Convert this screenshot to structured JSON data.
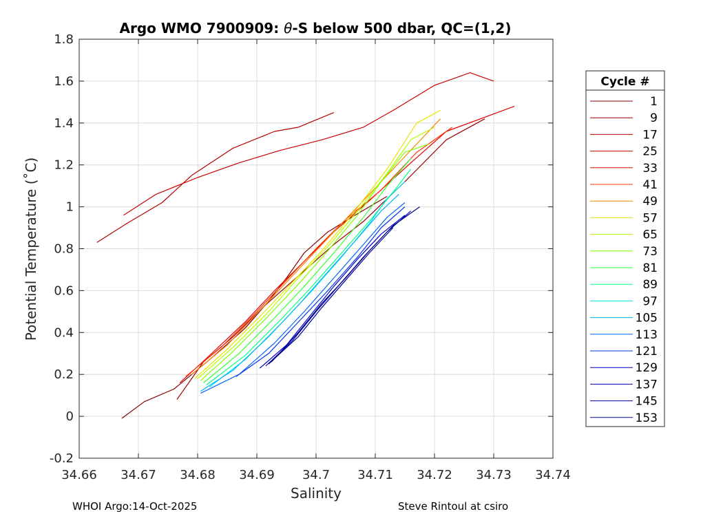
{
  "chart_data": {
    "type": "line",
    "title_prefix": "Argo WMO 7900909: ",
    "title_theta": "θ",
    "title_suffix": "-S below 500 dbar,  QC=(1,2)",
    "xlabel": "Salinity",
    "ylabel": "Potential Temperature (˚C)",
    "xlim": [
      34.66,
      34.74
    ],
    "ylim": [
      -0.2,
      1.8
    ],
    "xticks": [
      "34.66",
      "34.67",
      "34.68",
      "34.69",
      "34.7",
      "34.71",
      "34.72",
      "34.73",
      "34.74"
    ],
    "yticks": [
      "-0.2",
      "0",
      "0.2",
      "0.4",
      "0.6",
      "0.8",
      "1",
      "1.2",
      "1.4",
      "1.6",
      "1.8"
    ],
    "grid": true,
    "legend_title": "Cycle #",
    "legend_placement": "right outside",
    "series": [
      {
        "name": "1",
        "color": "#800000",
        "points": [
          [
            34.6672,
            -0.01
          ],
          [
            34.671,
            0.07
          ],
          [
            34.676,
            0.13
          ],
          [
            34.682,
            0.27
          ],
          [
            34.688,
            0.42
          ],
          [
            34.692,
            0.55
          ],
          [
            34.695,
            0.66
          ],
          [
            34.698,
            0.78
          ],
          [
            34.702,
            0.88
          ],
          [
            34.706,
            0.95
          ],
          [
            34.712,
            1.05
          ]
        ]
      },
      {
        "name": "9",
        "color": "#990000",
        "points": [
          [
            34.6765,
            0.08
          ],
          [
            34.681,
            0.26
          ],
          [
            34.686,
            0.38
          ],
          [
            34.691,
            0.52
          ],
          [
            34.695,
            0.62
          ],
          [
            34.699,
            0.72
          ],
          [
            34.703,
            0.82
          ],
          [
            34.708,
            0.93
          ],
          [
            34.715,
            1.12
          ],
          [
            34.722,
            1.32
          ],
          [
            34.7285,
            1.42
          ]
        ]
      },
      {
        "name": "17",
        "color": "#b30000",
        "points": [
          [
            34.663,
            0.83
          ],
          [
            34.668,
            0.92
          ],
          [
            34.674,
            1.02
          ],
          [
            34.679,
            1.15
          ],
          [
            34.686,
            1.28
          ],
          [
            34.693,
            1.36
          ],
          [
            34.697,
            1.38
          ],
          [
            34.703,
            1.45
          ]
        ]
      },
      {
        "name": "25",
        "color": "#cc0000",
        "points": [
          [
            34.6675,
            0.96
          ],
          [
            34.673,
            1.06
          ],
          [
            34.68,
            1.14
          ],
          [
            34.687,
            1.21
          ],
          [
            34.694,
            1.27
          ],
          [
            34.701,
            1.32
          ],
          [
            34.708,
            1.38
          ],
          [
            34.713,
            1.46
          ],
          [
            34.72,
            1.58
          ],
          [
            34.726,
            1.64
          ],
          [
            34.73,
            1.6
          ]
        ]
      },
      {
        "name": "33",
        "color": "#e60000",
        "points": [
          [
            34.677,
            0.16
          ],
          [
            34.682,
            0.29
          ],
          [
            34.688,
            0.45
          ],
          [
            34.693,
            0.6
          ],
          [
            34.698,
            0.74
          ],
          [
            34.703,
            0.88
          ],
          [
            34.709,
            1.03
          ],
          [
            34.716,
            1.21
          ],
          [
            34.722,
            1.36
          ],
          [
            34.7335,
            1.48
          ]
        ]
      },
      {
        "name": "41",
        "color": "#ff3300",
        "points": [
          [
            34.678,
            0.19
          ],
          [
            34.684,
            0.33
          ],
          [
            34.69,
            0.5
          ],
          [
            34.695,
            0.65
          ],
          [
            34.7,
            0.8
          ],
          [
            34.705,
            0.94
          ],
          [
            34.711,
            1.08
          ],
          [
            34.717,
            1.26
          ],
          [
            34.723,
            1.38
          ]
        ]
      },
      {
        "name": "49",
        "color": "#ff8000",
        "points": [
          [
            34.679,
            0.2
          ],
          [
            34.685,
            0.34
          ],
          [
            34.691,
            0.52
          ],
          [
            34.696,
            0.67
          ],
          [
            34.701,
            0.82
          ],
          [
            34.706,
            0.97
          ],
          [
            34.712,
            1.15
          ],
          [
            34.718,
            1.33
          ],
          [
            34.721,
            1.42
          ]
        ]
      },
      {
        "name": "57",
        "color": "#e6e600",
        "points": [
          [
            34.6795,
            0.18
          ],
          [
            34.685,
            0.32
          ],
          [
            34.691,
            0.49
          ],
          [
            34.696,
            0.64
          ],
          [
            34.701,
            0.79
          ],
          [
            34.706,
            0.96
          ],
          [
            34.712,
            1.18
          ],
          [
            34.717,
            1.4
          ],
          [
            34.721,
            1.46
          ]
        ]
      },
      {
        "name": "65",
        "color": "#b3ff00",
        "points": [
          [
            34.68,
            0.18
          ],
          [
            34.686,
            0.33
          ],
          [
            34.692,
            0.5
          ],
          [
            34.697,
            0.66
          ],
          [
            34.702,
            0.81
          ],
          [
            34.707,
            0.98
          ],
          [
            34.712,
            1.16
          ],
          [
            34.716,
            1.32
          ],
          [
            34.72,
            1.38
          ]
        ]
      },
      {
        "name": "73",
        "color": "#80ff00",
        "points": [
          [
            34.6805,
            0.17
          ],
          [
            34.686,
            0.31
          ],
          [
            34.692,
            0.48
          ],
          [
            34.697,
            0.63
          ],
          [
            34.702,
            0.79
          ],
          [
            34.707,
            0.96
          ],
          [
            34.711,
            1.12
          ],
          [
            34.715,
            1.26
          ],
          [
            34.719,
            1.3
          ]
        ]
      },
      {
        "name": "81",
        "color": "#33ff33",
        "points": [
          [
            34.681,
            0.16
          ],
          [
            34.687,
            0.3
          ],
          [
            34.693,
            0.47
          ],
          [
            34.698,
            0.62
          ],
          [
            34.703,
            0.78
          ],
          [
            34.708,
            0.95
          ],
          [
            34.712,
            1.1
          ],
          [
            34.716,
            1.23
          ]
        ]
      },
      {
        "name": "89",
        "color": "#00ff80",
        "points": [
          [
            34.6815,
            0.15
          ],
          [
            34.688,
            0.29
          ],
          [
            34.694,
            0.46
          ],
          [
            34.699,
            0.61
          ],
          [
            34.704,
            0.77
          ],
          [
            34.709,
            0.93
          ],
          [
            34.713,
            1.07
          ],
          [
            34.716,
            1.18
          ]
        ]
      },
      {
        "name": "97",
        "color": "#00e6e6",
        "points": [
          [
            34.682,
            0.14
          ],
          [
            34.688,
            0.27
          ],
          [
            34.694,
            0.44
          ],
          [
            34.699,
            0.59
          ],
          [
            34.704,
            0.75
          ],
          [
            34.709,
            0.92
          ],
          [
            34.712,
            1.04
          ],
          [
            34.715,
            1.12
          ]
        ]
      },
      {
        "name": "105",
        "color": "#00b3ff",
        "points": [
          [
            34.6805,
            0.12
          ],
          [
            34.686,
            0.22
          ],
          [
            34.692,
            0.38
          ],
          [
            34.697,
            0.53
          ],
          [
            34.702,
            0.69
          ],
          [
            34.707,
            0.85
          ],
          [
            34.711,
            0.98
          ],
          [
            34.714,
            1.06
          ]
        ]
      },
      {
        "name": "113",
        "color": "#0066ff",
        "points": [
          [
            34.6805,
            0.11
          ],
          [
            34.687,
            0.2
          ],
          [
            34.693,
            0.35
          ],
          [
            34.698,
            0.5
          ],
          [
            34.703,
            0.66
          ],
          [
            34.708,
            0.82
          ],
          [
            34.712,
            0.95
          ],
          [
            34.715,
            1.02
          ]
        ]
      },
      {
        "name": "121",
        "color": "#0033e6",
        "points": [
          [
            34.6865,
            0.19
          ],
          [
            34.692,
            0.3
          ],
          [
            34.697,
            0.45
          ],
          [
            34.702,
            0.6
          ],
          [
            34.707,
            0.76
          ],
          [
            34.711,
            0.9
          ],
          [
            34.715,
            1.0
          ]
        ]
      },
      {
        "name": "129",
        "color": "#0000cc",
        "points": [
          [
            34.6905,
            0.23
          ],
          [
            34.695,
            0.34
          ],
          [
            34.699,
            0.48
          ],
          [
            34.703,
            0.62
          ],
          [
            34.707,
            0.75
          ],
          [
            34.711,
            0.87
          ],
          [
            34.715,
            0.96
          ]
        ]
      },
      {
        "name": "137",
        "color": "#0000b3",
        "points": [
          [
            34.6915,
            0.24
          ],
          [
            34.696,
            0.36
          ],
          [
            34.7,
            0.5
          ],
          [
            34.704,
            0.63
          ],
          [
            34.708,
            0.76
          ],
          [
            34.712,
            0.88
          ],
          [
            34.716,
            0.98
          ]
        ]
      },
      {
        "name": "145",
        "color": "#000099",
        "points": [
          [
            34.692,
            0.25
          ],
          [
            34.697,
            0.38
          ],
          [
            34.701,
            0.52
          ],
          [
            34.705,
            0.65
          ],
          [
            34.709,
            0.78
          ],
          [
            34.713,
            0.9
          ]
        ]
      },
      {
        "name": "153",
        "color": "#000080",
        "points": [
          [
            34.6925,
            0.26
          ],
          [
            34.697,
            0.4
          ],
          [
            34.701,
            0.54
          ],
          [
            34.705,
            0.66
          ],
          [
            34.709,
            0.79
          ],
          [
            34.713,
            0.91
          ],
          [
            34.7175,
            1.0
          ]
        ]
      }
    ]
  },
  "footer": {
    "left": "WHOI Argo:14-Oct-2025",
    "right": "Steve Rintoul at csiro"
  }
}
